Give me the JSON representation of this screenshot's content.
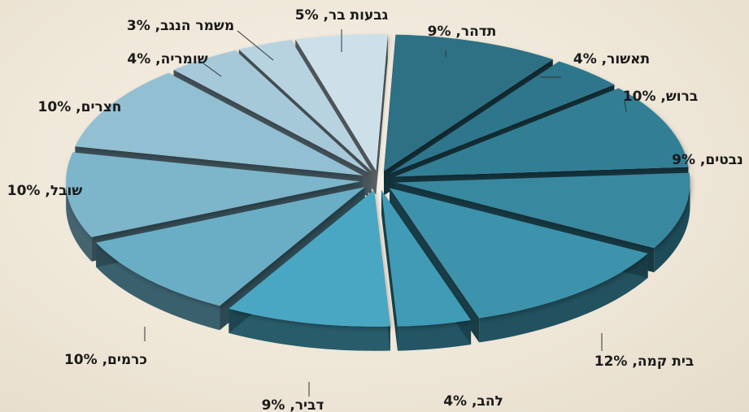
{
  "chart_data": {
    "type": "pie",
    "style": "3d-exploded",
    "title": "",
    "slices": [
      {
        "label": "תדהר, 9%",
        "value": 9,
        "color": "#2e7084"
      },
      {
        "label": "תאשור, 4%",
        "value": 4,
        "color": "#2f768b"
      },
      {
        "label": "ברוש, 10%",
        "value": 10,
        "color": "#337f95"
      },
      {
        "label": "נבטים, 9%",
        "value": 9,
        "color": "#3788a0"
      },
      {
        "label": "בית קמה, 12%",
        "value": 12,
        "color": "#3d93ac"
      },
      {
        "label": "להב, 4%",
        "value": 4,
        "color": "#3f9bb6"
      },
      {
        "label": "דביר, 9%",
        "value": 9,
        "color": "#48a7c3"
      },
      {
        "label": "כרמים, 10%",
        "value": 10,
        "color": "#6aaec6"
      },
      {
        "label": "שובל, 10%",
        "value": 10,
        "color": "#7db5cb"
      },
      {
        "label": "חצרים, 10%",
        "value": 10,
        "color": "#92bfd2"
      },
      {
        "label": "שומריה, 4%",
        "value": 4,
        "color": "#a6c9d9"
      },
      {
        "label": "משמר הנגב, 3%",
        "value": 3,
        "color": "#b7d3e0"
      },
      {
        "label": "גבעות בר, 5%",
        "value": 5,
        "color": "#cde0ea"
      }
    ]
  }
}
